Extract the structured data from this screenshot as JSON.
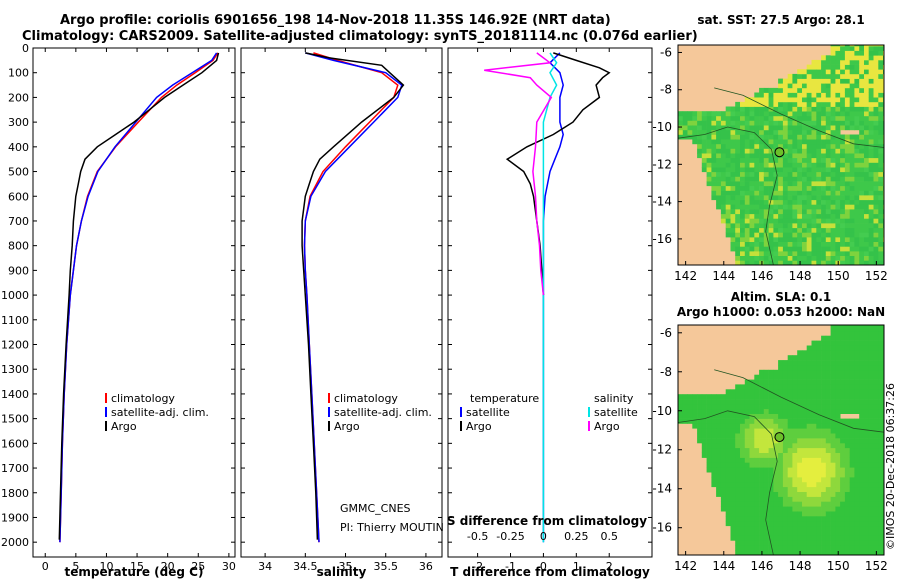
{
  "title": {
    "line1": "Argo profile: coriolis 6901656_198 14-Nov-2018 11.35S 146.92E (NRT data)",
    "line2": "Climatology: CARS2009. Satellite-adjusted climatology: synTS_20181114.nc (0.076d earlier)"
  },
  "colors": {
    "climatology": "#ff0000",
    "satellite": "#0000ff",
    "argo": "#000000",
    "t_satellite": "#0000ff",
    "s_satellite": "#00e5e5",
    "s_argo": "#ff00ff",
    "land": "#f5c89a",
    "coast": "#333333"
  },
  "depth_ticks": [
    0,
    100,
    200,
    300,
    400,
    500,
    600,
    700,
    800,
    900,
    1000,
    1100,
    1200,
    1300,
    1400,
    1500,
    1600,
    1700,
    1800,
    1900,
    2000
  ],
  "chart_data": [
    {
      "type": "line",
      "id": "temperature",
      "xlabel": "temperature (deg C)",
      "ylabel": "",
      "xlim": [
        -2,
        31
      ],
      "ylim": [
        0,
        2060
      ],
      "xticks": [
        0,
        5,
        10,
        15,
        20,
        25,
        30
      ],
      "legend": {
        "placement": "bottom-center",
        "items": [
          "climatology",
          "satellite-adj. clim.",
          "Argo"
        ]
      },
      "series": [
        {
          "name": "climatology",
          "depth": [
            20,
            50,
            100,
            150,
            200,
            300,
            400,
            500,
            600,
            700,
            800,
            900,
            1000,
            1200,
            1400,
            1600,
            1800,
            2000
          ],
          "values": [
            28.2,
            27.4,
            24.5,
            21.5,
            19.0,
            15.2,
            11.5,
            8.5,
            6.9,
            5.9,
            5.1,
            4.6,
            4.1,
            3.5,
            3.1,
            2.8,
            2.6,
            2.4
          ]
        },
        {
          "name": "satellite-adj. clim.",
          "depth": [
            20,
            50,
            100,
            150,
            200,
            300,
            400,
            500,
            600,
            700,
            800,
            900,
            1000,
            1200,
            1400,
            1600,
            1800,
            2000
          ],
          "values": [
            28.0,
            27.2,
            24.0,
            20.8,
            18.2,
            14.8,
            11.4,
            8.6,
            7.0,
            5.9,
            5.1,
            4.6,
            4.1,
            3.5,
            3.1,
            2.8,
            2.6,
            2.4
          ]
        },
        {
          "name": "Argo",
          "depth": [
            20,
            50,
            100,
            150,
            200,
            250,
            300,
            350,
            400,
            450,
            500,
            550,
            600,
            700,
            800,
            900,
            1000,
            1200,
            1400,
            1600,
            1800,
            1990
          ],
          "values": [
            28.3,
            28.0,
            25.6,
            22.5,
            19.5,
            17.0,
            14.5,
            11.5,
            8.5,
            6.5,
            5.8,
            5.4,
            5.0,
            4.6,
            4.4,
            4.1,
            3.9,
            3.4,
            3.0,
            2.7,
            2.5,
            2.3
          ]
        }
      ]
    },
    {
      "type": "line",
      "id": "salinity",
      "xlabel": "salinity",
      "xlim": [
        33.7,
        36.2
      ],
      "ylim": [
        0,
        2060
      ],
      "xticks": [
        34,
        34.5,
        35,
        35.5,
        36
      ],
      "legend": {
        "placement": "bottom-right",
        "items": [
          "climatology",
          "satellite-adj. clim.",
          "Argo"
        ]
      },
      "annotations": [
        "GMMC_CNES",
        "PI: Thierry MOUTIN"
      ],
      "series": [
        {
          "name": "climatology",
          "depth": [
            20,
            50,
            100,
            150,
            200,
            300,
            400,
            500,
            600,
            700,
            800,
            900,
            1000,
            1200,
            1400,
            1600,
            1800,
            2000
          ],
          "values": [
            34.6,
            34.9,
            35.45,
            35.65,
            35.6,
            35.3,
            35.0,
            34.72,
            34.56,
            34.5,
            34.49,
            34.5,
            34.52,
            34.55,
            34.58,
            34.61,
            34.64,
            34.67
          ]
        },
        {
          "name": "satellite-adj. clim.",
          "depth": [
            20,
            50,
            100,
            150,
            200,
            300,
            400,
            500,
            600,
            700,
            800,
            900,
            1000,
            1200,
            1400,
            1600,
            1800,
            2000
          ],
          "values": [
            34.5,
            34.85,
            35.5,
            35.7,
            35.65,
            35.35,
            35.05,
            34.75,
            34.57,
            34.5,
            34.49,
            34.5,
            34.52,
            34.55,
            34.58,
            34.61,
            34.64,
            34.67
          ]
        },
        {
          "name": "Argo",
          "depth": [
            20,
            40,
            70,
            100,
            150,
            200,
            300,
            400,
            450,
            500,
            550,
            600,
            700,
            800,
            900,
            1000,
            1200,
            1400,
            1600,
            1800,
            1990
          ],
          "values": [
            34.5,
            34.8,
            35.45,
            35.55,
            35.72,
            35.6,
            35.2,
            34.85,
            34.68,
            34.6,
            34.55,
            34.5,
            34.46,
            34.46,
            34.48,
            34.5,
            34.54,
            34.57,
            34.6,
            34.63,
            34.65
          ]
        }
      ]
    },
    {
      "type": "line",
      "id": "difference",
      "xlabel": "T difference from climatology",
      "xlabel_top": "S difference from climatology",
      "xlim": [
        -2.9,
        3.3
      ],
      "ylim": [
        0,
        2060
      ],
      "xticks": [
        -2,
        -1,
        0,
        1,
        2
      ],
      "xticks_top": [
        "-0.5",
        "-0.25",
        "0",
        "0.25",
        "0.5"
      ],
      "legend_left": {
        "title": "temperature",
        "items": [
          "satellite",
          "Argo"
        ]
      },
      "legend_right": {
        "title": "salinity",
        "items": [
          "satellite",
          "Argo"
        ]
      },
      "series": [
        {
          "name": "temperature satellite",
          "depth": [
            20,
            60,
            100,
            150,
            200,
            250,
            300,
            350,
            400,
            450,
            500,
            600,
            700,
            800,
            1000,
            1500,
            2000
          ],
          "values": [
            0.5,
            0.2,
            0.5,
            0.6,
            0.5,
            0.5,
            0.5,
            0.6,
            0.5,
            0.35,
            0.2,
            0.05,
            0,
            0,
            0,
            0,
            0
          ]
        },
        {
          "name": "temperature Argo",
          "depth": [
            20,
            50,
            80,
            100,
            120,
            150,
            200,
            250,
            300,
            350,
            400,
            450,
            500,
            550,
            600,
            700,
            800,
            900,
            1000
          ],
          "values": [
            0.3,
            1.0,
            1.7,
            2.0,
            1.8,
            1.6,
            1.7,
            1.2,
            0.9,
            0.3,
            -0.5,
            -1.1,
            -0.6,
            -0.4,
            -0.3,
            -0.2,
            -0.1,
            -0.05,
            0
          ]
        },
        {
          "name": "salinity satellite",
          "depth": [
            20,
            60,
            100,
            150,
            200,
            300,
            500,
            800,
            1200,
            1600,
            2000
          ],
          "values": [
            0.05,
            0.1,
            0.05,
            0.1,
            0.05,
            0.0,
            0.0,
            0.0,
            0.0,
            0.0,
            0.0
          ]
        },
        {
          "name": "salinity Argo",
          "depth": [
            20,
            60,
            90,
            120,
            150,
            200,
            300,
            400,
            500,
            600,
            700,
            800,
            900,
            1000
          ],
          "values": [
            -0.05,
            0.05,
            -0.45,
            -0.1,
            -0.05,
            0.06,
            -0.05,
            -0.06,
            -0.08,
            -0.06,
            -0.05,
            -0.03,
            -0.02,
            0.0
          ]
        }
      ]
    },
    {
      "type": "heatmap",
      "id": "sst_map",
      "title": "sat. SST: 27.5 Argo: 28.1",
      "xticks": [
        142,
        144,
        146,
        148,
        150,
        152
      ],
      "yticks": [
        -6,
        -8,
        -10,
        -12,
        -14,
        -16
      ],
      "xlim": [
        141.6,
        152.4
      ],
      "ylim": [
        -17.4,
        -5.6
      ],
      "marker": {
        "lon": 146.92,
        "lat": -11.35
      }
    },
    {
      "type": "heatmap",
      "id": "sla_map",
      "title": "Altim. SLA: 0.1",
      "title2": "Argo h1000: 0.053 h2000: NaN",
      "xticks": [
        142,
        144,
        146,
        148,
        150,
        152
      ],
      "yticks": [
        -6,
        -8,
        -10,
        -12,
        -14,
        -16
      ],
      "xlim": [
        141.6,
        152.4
      ],
      "ylim": [
        -17.4,
        -5.6
      ],
      "marker": {
        "lon": 146.92,
        "lat": -11.35
      }
    }
  ],
  "watermark": "©IMOS 20-Dec-2018 06:37:26"
}
